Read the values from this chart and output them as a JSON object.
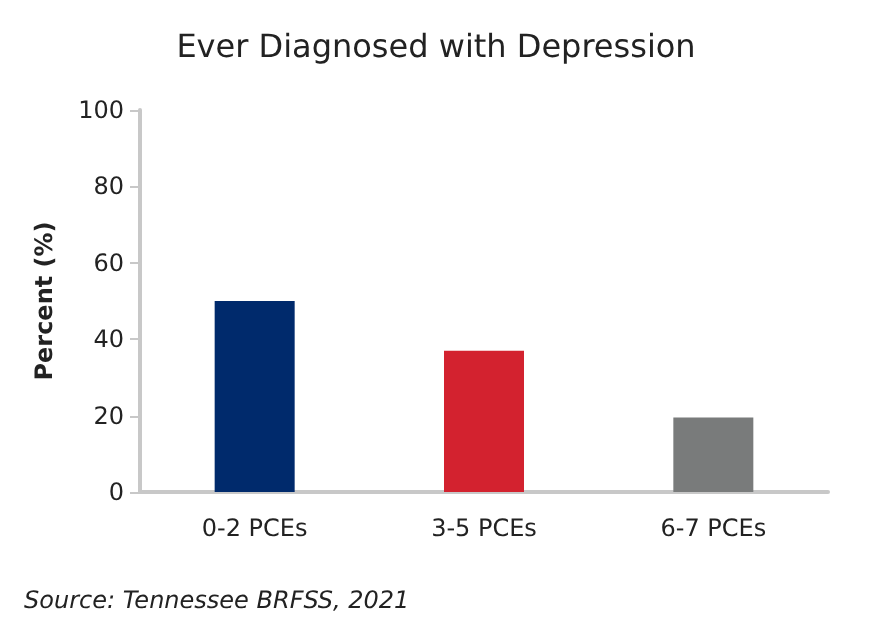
{
  "chart_data": {
    "type": "bar",
    "title": "Ever Diagnosed with Depression",
    "ylabel": "Percent (%)",
    "categories": [
      "0-2 PCEs",
      "3-5 PCEs",
      "6-7 PCEs"
    ],
    "values": [
      50,
      37,
      19.5
    ],
    "colors": [
      "#002a6c",
      "#d3222f",
      "#797b7b"
    ],
    "ylim": [
      0,
      100
    ],
    "yticks": [
      0,
      20,
      40,
      60,
      80,
      100
    ],
    "grid": false,
    "annotations": [
      "Source: Tennessee BRFSS, 2021"
    ]
  }
}
